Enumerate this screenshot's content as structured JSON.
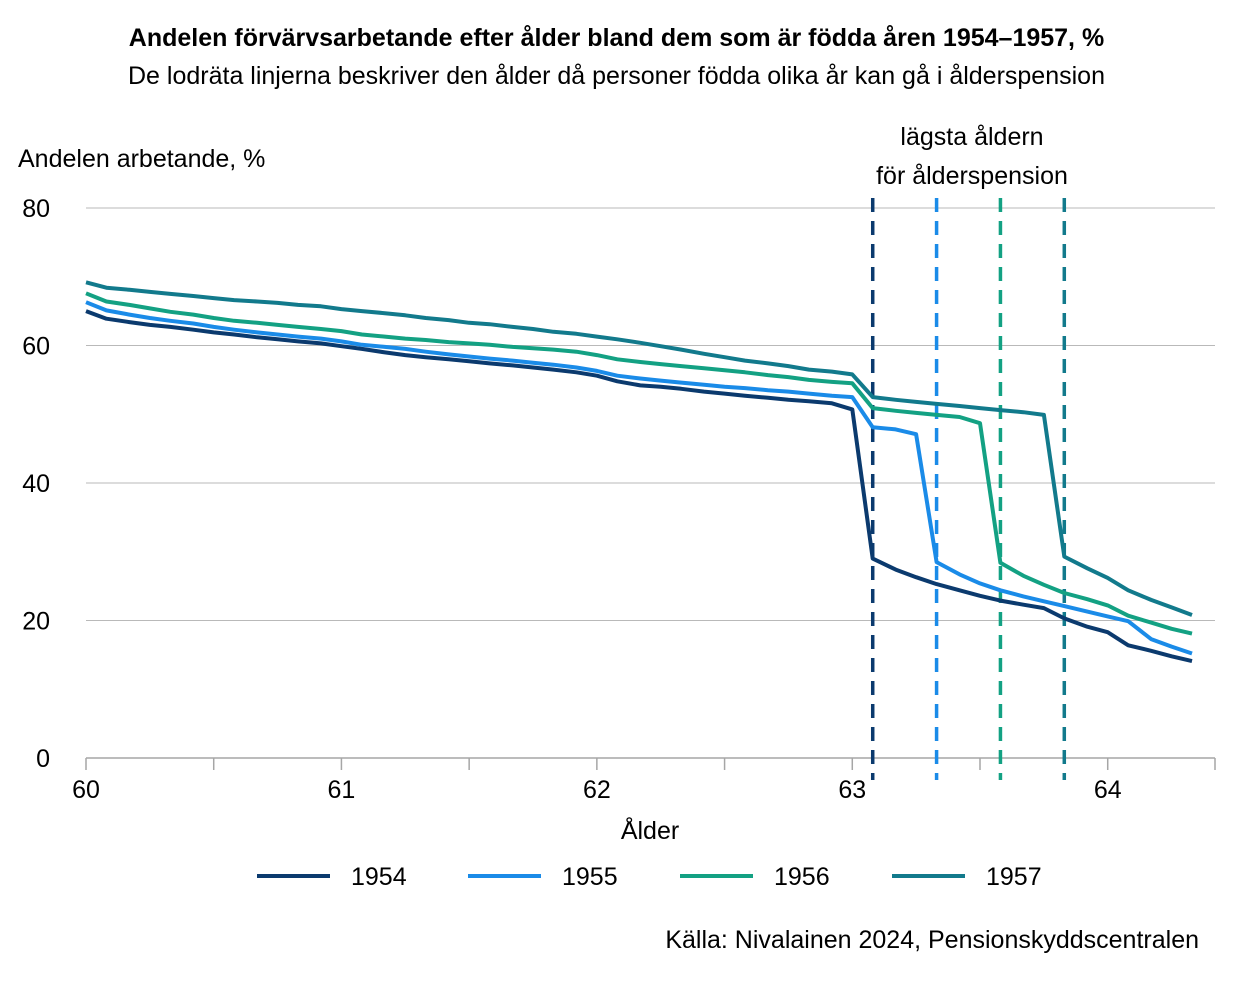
{
  "header": {
    "title": "Andelen förvärvsarbetande efter ålder bland dem som är födda åren 1954–1957, %",
    "subtitle": "De lodräta linjerna beskriver den ålder då personer födda olika år kan gå i ålderspension"
  },
  "footer": {
    "source": "Källa: Nivalainen 2024, Pensionskyddscentralen"
  },
  "chart_data": {
    "type": "line",
    "title": "Andelen förvärvsarbetande efter ålder bland dem som är födda åren 1954–1957, %",
    "subtitle": "De lodräta linjerna beskriver den ålder då personer födda olika år kan gå i ålderspension",
    "xlabel": "Ålder",
    "ylabel": "Andelen arbetande, %",
    "xlim": [
      60,
      64.42
    ],
    "ylim": [
      0,
      80
    ],
    "x_ticks": [
      60,
      61,
      62,
      63,
      64
    ],
    "y_ticks": [
      0,
      20,
      40,
      60,
      80
    ],
    "grid": "horizontal",
    "legend_position": "bottom",
    "annotation": {
      "lines": [
        "lägsta åldern",
        "för ålderspension"
      ]
    },
    "retirement_ages": [
      {
        "series": "1954",
        "x": 63.08
      },
      {
        "series": "1955",
        "x": 63.33
      },
      {
        "series": "1956",
        "x": 63.58
      },
      {
        "series": "1957",
        "x": 63.83
      }
    ],
    "colors": {
      "1954": "#0b3a6e",
      "1955": "#1a8be8",
      "1956": "#13a183",
      "1957": "#127a8c"
    },
    "series": [
      {
        "name": "1954",
        "points": [
          [
            60,
            65.0
          ],
          [
            60.08,
            63.9
          ],
          [
            60.17,
            63.4
          ],
          [
            60.25,
            63.0
          ],
          [
            60.33,
            62.7
          ],
          [
            60.42,
            62.3
          ],
          [
            60.5,
            61.9
          ],
          [
            60.58,
            61.6
          ],
          [
            60.67,
            61.2
          ],
          [
            60.75,
            60.9
          ],
          [
            60.83,
            60.6
          ],
          [
            60.92,
            60.3
          ],
          [
            61,
            59.9
          ],
          [
            61.08,
            59.5
          ],
          [
            61.17,
            59.0
          ],
          [
            61.25,
            58.6
          ],
          [
            61.33,
            58.3
          ],
          [
            61.42,
            58.0
          ],
          [
            61.5,
            57.7
          ],
          [
            61.58,
            57.4
          ],
          [
            61.67,
            57.1
          ],
          [
            61.75,
            56.8
          ],
          [
            61.83,
            56.5
          ],
          [
            61.92,
            56.1
          ],
          [
            62,
            55.6
          ],
          [
            62.08,
            54.8
          ],
          [
            62.17,
            54.2
          ],
          [
            62.25,
            54.0
          ],
          [
            62.33,
            53.7
          ],
          [
            62.42,
            53.3
          ],
          [
            62.5,
            53.0
          ],
          [
            62.58,
            52.7
          ],
          [
            62.67,
            52.4
          ],
          [
            62.75,
            52.1
          ],
          [
            62.83,
            51.9
          ],
          [
            62.92,
            51.6
          ],
          [
            63,
            50.7
          ],
          [
            63.08,
            29.0
          ],
          [
            63.17,
            27.4
          ],
          [
            63.25,
            26.3
          ],
          [
            63.33,
            25.3
          ],
          [
            63.42,
            24.4
          ],
          [
            63.5,
            23.6
          ],
          [
            63.58,
            22.9
          ],
          [
            63.67,
            22.3
          ],
          [
            63.75,
            21.8
          ],
          [
            63.83,
            20.3
          ],
          [
            63.92,
            19.1
          ],
          [
            64,
            18.3
          ],
          [
            64.08,
            16.4
          ],
          [
            64.17,
            15.6
          ],
          [
            64.25,
            14.8
          ],
          [
            64.33,
            14.1
          ]
        ]
      },
      {
        "name": "1955",
        "points": [
          [
            60,
            66.3
          ],
          [
            60.08,
            65.1
          ],
          [
            60.17,
            64.5
          ],
          [
            60.25,
            64.0
          ],
          [
            60.33,
            63.6
          ],
          [
            60.42,
            63.2
          ],
          [
            60.5,
            62.7
          ],
          [
            60.58,
            62.3
          ],
          [
            60.67,
            61.9
          ],
          [
            60.75,
            61.6
          ],
          [
            60.83,
            61.3
          ],
          [
            60.92,
            61.0
          ],
          [
            61,
            60.6
          ],
          [
            61.08,
            60.1
          ],
          [
            61.17,
            59.8
          ],
          [
            61.25,
            59.5
          ],
          [
            61.33,
            59.1
          ],
          [
            61.42,
            58.7
          ],
          [
            61.5,
            58.4
          ],
          [
            61.58,
            58.1
          ],
          [
            61.67,
            57.8
          ],
          [
            61.75,
            57.5
          ],
          [
            61.83,
            57.2
          ],
          [
            61.92,
            56.8
          ],
          [
            62,
            56.3
          ],
          [
            62.08,
            55.6
          ],
          [
            62.17,
            55.2
          ],
          [
            62.25,
            54.9
          ],
          [
            62.33,
            54.6
          ],
          [
            62.42,
            54.3
          ],
          [
            62.5,
            54.0
          ],
          [
            62.58,
            53.8
          ],
          [
            62.67,
            53.5
          ],
          [
            62.75,
            53.3
          ],
          [
            62.83,
            53.0
          ],
          [
            62.92,
            52.7
          ],
          [
            63,
            52.5
          ],
          [
            63.08,
            48.1
          ],
          [
            63.17,
            47.8
          ],
          [
            63.25,
            47.1
          ],
          [
            63.33,
            28.5
          ],
          [
            63.42,
            26.7
          ],
          [
            63.5,
            25.4
          ],
          [
            63.58,
            24.4
          ],
          [
            63.67,
            23.5
          ],
          [
            63.75,
            22.8
          ],
          [
            63.83,
            22.1
          ],
          [
            63.92,
            21.3
          ],
          [
            64,
            20.6
          ],
          [
            64.08,
            19.9
          ],
          [
            64.17,
            17.3
          ],
          [
            64.25,
            16.2
          ],
          [
            64.33,
            15.2
          ]
        ]
      },
      {
        "name": "1956",
        "points": [
          [
            60,
            67.6
          ],
          [
            60.08,
            66.4
          ],
          [
            60.17,
            65.9
          ],
          [
            60.25,
            65.4
          ],
          [
            60.33,
            64.9
          ],
          [
            60.42,
            64.5
          ],
          [
            60.5,
            64.0
          ],
          [
            60.58,
            63.6
          ],
          [
            60.67,
            63.3
          ],
          [
            60.75,
            63.0
          ],
          [
            60.83,
            62.7
          ],
          [
            60.92,
            62.4
          ],
          [
            61,
            62.1
          ],
          [
            61.08,
            61.6
          ],
          [
            61.17,
            61.3
          ],
          [
            61.25,
            61.0
          ],
          [
            61.33,
            60.8
          ],
          [
            61.42,
            60.5
          ],
          [
            61.5,
            60.3
          ],
          [
            61.58,
            60.1
          ],
          [
            61.67,
            59.8
          ],
          [
            61.75,
            59.6
          ],
          [
            61.83,
            59.4
          ],
          [
            61.92,
            59.1
          ],
          [
            62,
            58.6
          ],
          [
            62.08,
            58.0
          ],
          [
            62.17,
            57.6
          ],
          [
            62.25,
            57.3
          ],
          [
            62.33,
            57.0
          ],
          [
            62.42,
            56.7
          ],
          [
            62.5,
            56.4
          ],
          [
            62.58,
            56.1
          ],
          [
            62.67,
            55.7
          ],
          [
            62.75,
            55.4
          ],
          [
            62.83,
            55.0
          ],
          [
            62.92,
            54.7
          ],
          [
            63,
            54.5
          ],
          [
            63.08,
            50.9
          ],
          [
            63.17,
            50.5
          ],
          [
            63.25,
            50.2
          ],
          [
            63.33,
            49.9
          ],
          [
            63.42,
            49.6
          ],
          [
            63.5,
            48.7
          ],
          [
            63.58,
            28.4
          ],
          [
            63.67,
            26.5
          ],
          [
            63.75,
            25.2
          ],
          [
            63.83,
            24.0
          ],
          [
            63.92,
            23.1
          ],
          [
            64,
            22.2
          ],
          [
            64.08,
            20.7
          ],
          [
            64.17,
            19.7
          ],
          [
            64.25,
            18.8
          ],
          [
            64.33,
            18.1
          ]
        ]
      },
      {
        "name": "1957",
        "points": [
          [
            60,
            69.2
          ],
          [
            60.08,
            68.4
          ],
          [
            60.17,
            68.1
          ],
          [
            60.25,
            67.8
          ],
          [
            60.33,
            67.5
          ],
          [
            60.42,
            67.2
          ],
          [
            60.5,
            66.9
          ],
          [
            60.58,
            66.6
          ],
          [
            60.67,
            66.4
          ],
          [
            60.75,
            66.2
          ],
          [
            60.83,
            65.9
          ],
          [
            60.92,
            65.7
          ],
          [
            61,
            65.3
          ],
          [
            61.08,
            65.0
          ],
          [
            61.17,
            64.7
          ],
          [
            61.25,
            64.4
          ],
          [
            61.33,
            64.0
          ],
          [
            61.42,
            63.7
          ],
          [
            61.5,
            63.3
          ],
          [
            61.58,
            63.1
          ],
          [
            61.67,
            62.7
          ],
          [
            61.75,
            62.4
          ],
          [
            61.83,
            62.0
          ],
          [
            61.92,
            61.7
          ],
          [
            62,
            61.3
          ],
          [
            62.08,
            60.9
          ],
          [
            62.17,
            60.4
          ],
          [
            62.25,
            59.9
          ],
          [
            62.33,
            59.4
          ],
          [
            62.42,
            58.8
          ],
          [
            62.5,
            58.3
          ],
          [
            62.58,
            57.8
          ],
          [
            62.67,
            57.4
          ],
          [
            62.75,
            57.0
          ],
          [
            62.83,
            56.5
          ],
          [
            62.92,
            56.2
          ],
          [
            63,
            55.8
          ],
          [
            63.08,
            52.5
          ],
          [
            63.17,
            52.1
          ],
          [
            63.25,
            51.8
          ],
          [
            63.33,
            51.5
          ],
          [
            63.42,
            51.2
          ],
          [
            63.5,
            50.9
          ],
          [
            63.58,
            50.6
          ],
          [
            63.67,
            50.3
          ],
          [
            63.75,
            49.9
          ],
          [
            63.83,
            29.3
          ],
          [
            63.92,
            27.6
          ],
          [
            64,
            26.2
          ],
          [
            64.08,
            24.4
          ],
          [
            64.17,
            23.0
          ],
          [
            64.25,
            21.9
          ],
          [
            64.33,
            20.8
          ]
        ]
      }
    ]
  }
}
